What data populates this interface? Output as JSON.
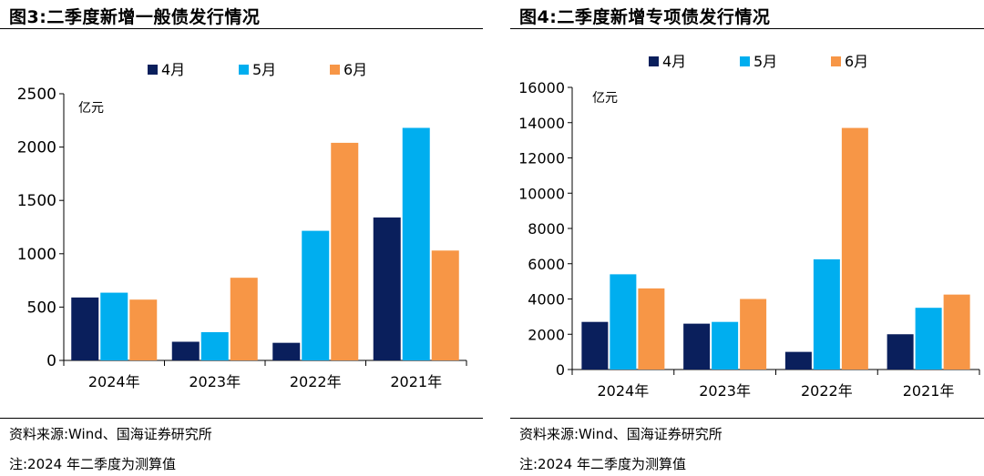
{
  "figures": [
    {
      "title": "图3:二季度新增一般债发行情况",
      "source": "资料来源:Wind、国海证券研究所",
      "note": "注:2024 年二季度为测算值",
      "chart_data": {
        "type": "bar",
        "title": "",
        "xlabel": "",
        "ylabel": "亿元",
        "categories": [
          "2024年",
          "2023年",
          "2022年",
          "2021年"
        ],
        "series": [
          {
            "name": "4月",
            "values": [
              590,
              175,
              165,
              1340
            ],
            "color": "#0A1F5C"
          },
          {
            "name": "5月",
            "values": [
              635,
              265,
              1215,
              2180
            ],
            "color": "#00AEEF"
          },
          {
            "name": "6月",
            "values": [
              570,
              775,
              2040,
              1030
            ],
            "color": "#F79646"
          }
        ],
        "ylim": [
          0,
          2500
        ],
        "yticks": [
          0,
          500,
          1000,
          1500,
          2000,
          2500
        ],
        "grid": false,
        "legend": "top"
      }
    },
    {
      "title": "图4:二季度新增专项债发行情况",
      "source": "资料来源:Wind、国海证券研究所",
      "note": "注:2024 年二季度为测算值",
      "chart_data": {
        "type": "bar",
        "title": "",
        "xlabel": "",
        "ylabel": "亿元",
        "categories": [
          "2024年",
          "2023年",
          "2022年",
          "2021年"
        ],
        "series": [
          {
            "name": "4月",
            "values": [
              2700,
              2600,
              1000,
              2000
            ],
            "color": "#0A1F5C"
          },
          {
            "name": "5月",
            "values": [
              5400,
              2700,
              6250,
              3500
            ],
            "color": "#00AEEF"
          },
          {
            "name": "6月",
            "values": [
              4600,
              4000,
              13700,
              4250
            ],
            "color": "#F79646"
          }
        ],
        "ylim": [
          0,
          16000
        ],
        "yticks": [
          0,
          2000,
          4000,
          6000,
          8000,
          10000,
          12000,
          14000,
          16000
        ],
        "grid": false,
        "legend": "top"
      }
    }
  ]
}
